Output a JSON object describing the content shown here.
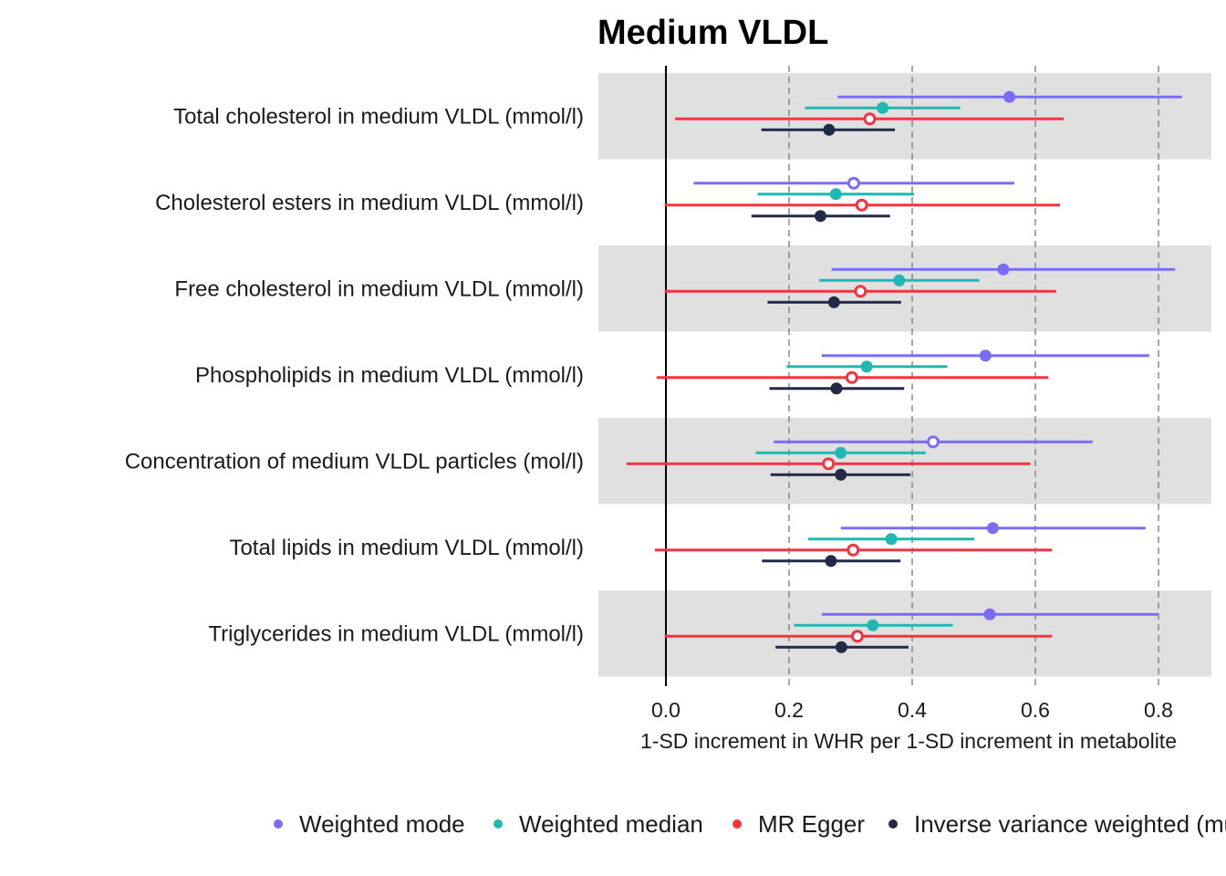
{
  "chart_data": {
    "type": "forest",
    "title": "Medium VLDL",
    "xlabel": "1-SD increment in WHR per 1-SD increment in metabolite",
    "xlim": [
      -0.11,
      0.89
    ],
    "xticks": [
      0.0,
      0.2,
      0.4,
      0.6,
      0.8
    ],
    "xtick_labels": [
      "0.0",
      "0.2",
      "0.4",
      "0.6",
      "0.8"
    ],
    "categories": [
      "Total cholesterol in medium VLDL (mmol/l)",
      "Cholesterol esters in medium VLDL (mmol/l)",
      "Free cholesterol in medium VLDL (mmol/l)",
      "Phospholipids in medium VLDL (mmol/l)",
      "Concentration of medium VLDL particles (mol/l)",
      "Total lipids in medium VLDL (mmol/l)",
      "Triglycerides in medium VLDL (mmol/l)"
    ],
    "series": [
      {
        "name": "Weighted mode",
        "color": "#7b6cf6",
        "estimates": [
          0.558,
          0.305,
          0.548,
          0.519,
          0.434,
          0.531,
          0.526
        ],
        "lower": [
          0.279,
          0.045,
          0.269,
          0.253,
          0.175,
          0.284,
          0.253
        ],
        "upper": [
          0.838,
          0.566,
          0.827,
          0.785,
          0.693,
          0.779,
          0.8
        ],
        "filled": [
          true,
          false,
          true,
          true,
          false,
          true,
          true
        ]
      },
      {
        "name": "Weighted median",
        "color": "#1fb8b2",
        "estimates": [
          0.352,
          0.276,
          0.379,
          0.326,
          0.284,
          0.366,
          0.336
        ],
        "lower": [
          0.226,
          0.149,
          0.249,
          0.196,
          0.146,
          0.231,
          0.208
        ],
        "upper": [
          0.478,
          0.403,
          0.509,
          0.457,
          0.422,
          0.501,
          0.466
        ],
        "filled": [
          true,
          true,
          true,
          true,
          true,
          true,
          true
        ]
      },
      {
        "name": "MR Egger",
        "color": "#f5333f",
        "estimates": [
          0.331,
          0.318,
          0.316,
          0.302,
          0.264,
          0.304,
          0.311
        ],
        "lower": [
          0.015,
          -0.002,
          -0.002,
          -0.015,
          -0.064,
          -0.018,
          -0.002
        ],
        "upper": [
          0.646,
          0.64,
          0.634,
          0.621,
          0.592,
          0.627,
          0.627
        ],
        "filled": [
          false,
          false,
          false,
          false,
          false,
          false,
          false
        ]
      },
      {
        "name": "Inverse variance weighted (multiplicative random effects)",
        "color": "#232a45",
        "estimates": [
          0.265,
          0.251,
          0.273,
          0.277,
          0.284,
          0.268,
          0.285
        ],
        "lower": [
          0.155,
          0.139,
          0.165,
          0.168,
          0.17,
          0.156,
          0.178
        ],
        "upper": [
          0.372,
          0.364,
          0.382,
          0.387,
          0.397,
          0.381,
          0.394
        ],
        "filled": [
          true,
          true,
          true,
          true,
          true,
          true,
          true
        ]
      }
    ],
    "legend": {
      "position": "bottom",
      "labels": [
        "Weighted mode",
        "Weighted median",
        "MR Egger",
        "Inverse variance weighted (multiplicative random effects)"
      ]
    }
  }
}
